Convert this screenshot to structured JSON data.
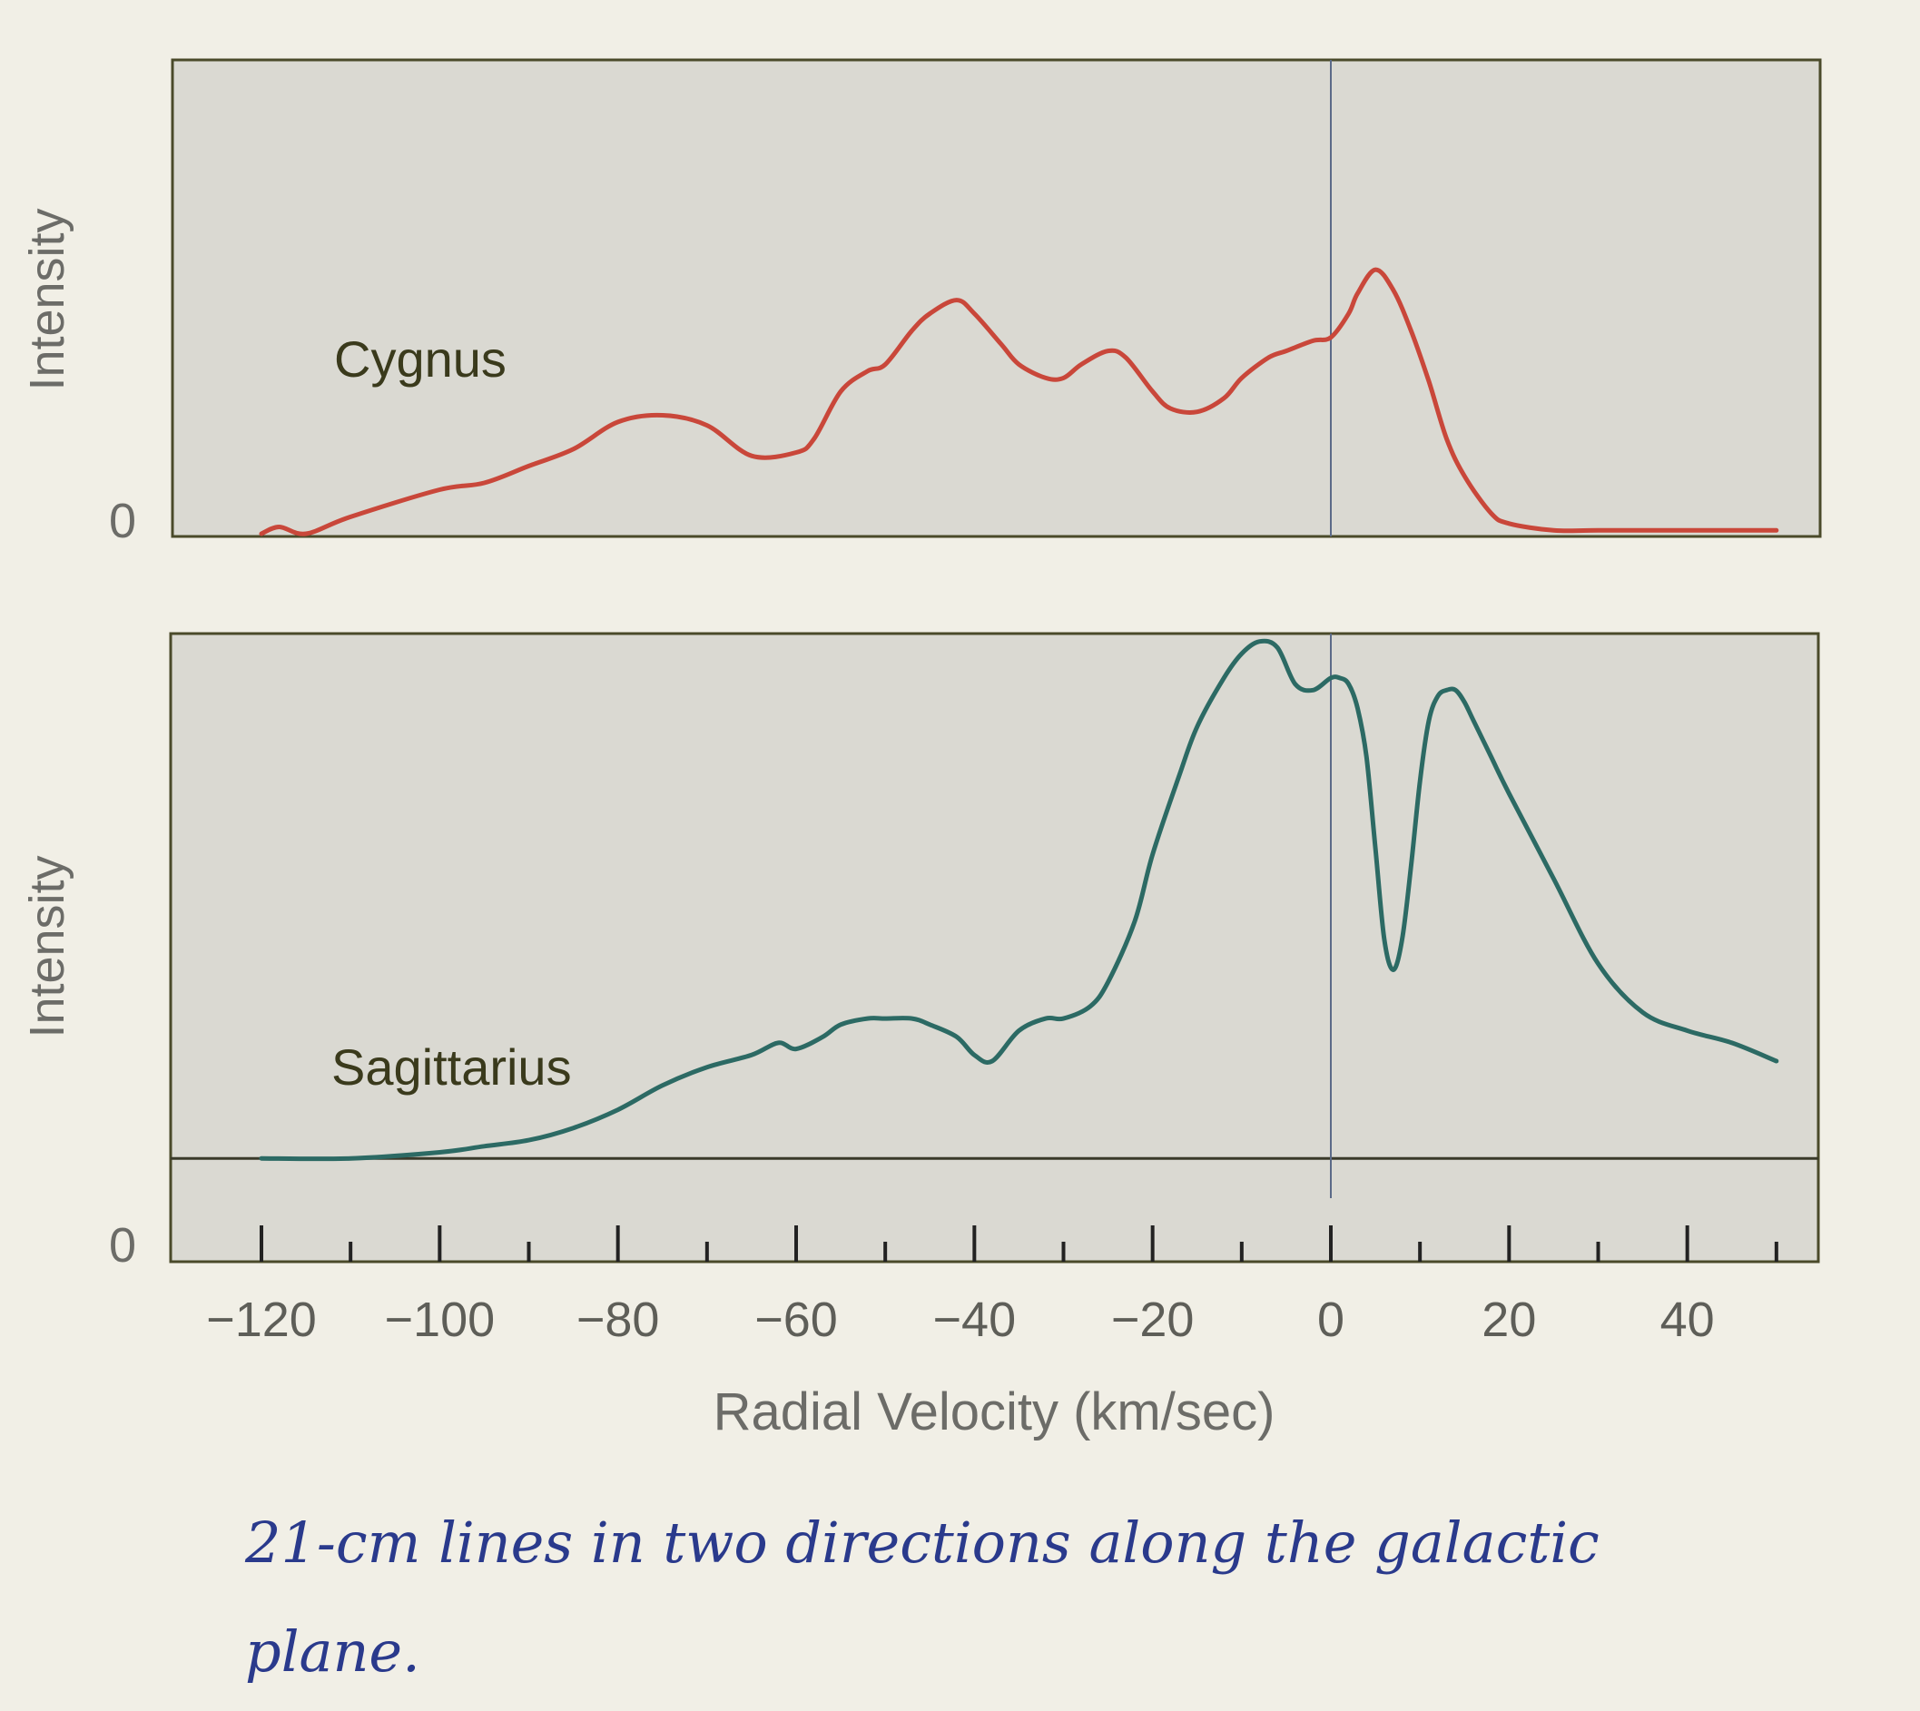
{
  "chart_data": [
    {
      "type": "line",
      "panel": "top",
      "series": [
        {
          "name": "Cygnus",
          "color": "#c9473a",
          "x": [
            -120,
            -118,
            -115,
            -110,
            -100,
            -95,
            -90,
            -85,
            -80,
            -75,
            -70,
            -65,
            -60,
            -58,
            -55,
            -52,
            -50,
            -47,
            -45,
            -42,
            -40,
            -37,
            -35,
            -32,
            -30,
            -28,
            -25,
            -23,
            -20,
            -18,
            -15,
            -12,
            -10,
            -7,
            -5,
            -2,
            0,
            2,
            3,
            5,
            7,
            9,
            11,
            13,
            15,
            18,
            20,
            25,
            30,
            40,
            50
          ],
          "values": [
            0.0,
            0.02,
            0.0,
            0.05,
            0.13,
            0.15,
            0.2,
            0.25,
            0.33,
            0.35,
            0.32,
            0.23,
            0.24,
            0.28,
            0.42,
            0.48,
            0.5,
            0.6,
            0.65,
            0.69,
            0.65,
            0.56,
            0.5,
            0.46,
            0.46,
            0.5,
            0.54,
            0.52,
            0.42,
            0.37,
            0.36,
            0.4,
            0.46,
            0.52,
            0.54,
            0.57,
            0.58,
            0.65,
            0.71,
            0.78,
            0.72,
            0.6,
            0.45,
            0.28,
            0.17,
            0.06,
            0.03,
            0.01,
            0.01,
            0.01,
            0.01
          ]
        }
      ],
      "xlim": [
        -128,
        55
      ],
      "ylim": [
        0,
        1
      ],
      "ylabel": "Intensity",
      "ytick_labels": [
        "0"
      ],
      "zero_line_x": 0
    },
    {
      "type": "line",
      "panel": "bottom",
      "series": [
        {
          "name": "Sagittarius",
          "color": "#2c6a64",
          "x": [
            -120,
            -110,
            -100,
            -95,
            -90,
            -85,
            -80,
            -75,
            -70,
            -65,
            -62,
            -60,
            -57,
            -55,
            -52,
            -50,
            -47,
            -45,
            -42,
            -40,
            -38,
            -35,
            -32,
            -30,
            -27,
            -25,
            -22,
            -20,
            -17,
            -15,
            -12,
            -10,
            -8,
            -6,
            -4,
            -2,
            0,
            1,
            2,
            3,
            4,
            5,
            6,
            7,
            8,
            9,
            10,
            11,
            12,
            13,
            14,
            15,
            16,
            18,
            20,
            25,
            30,
            35,
            40,
            45,
            50
          ],
          "values": [
            0.14,
            0.14,
            0.15,
            0.16,
            0.17,
            0.19,
            0.22,
            0.26,
            0.29,
            0.31,
            0.33,
            0.32,
            0.34,
            0.36,
            0.37,
            0.37,
            0.37,
            0.36,
            0.34,
            0.31,
            0.3,
            0.35,
            0.37,
            0.37,
            0.39,
            0.43,
            0.53,
            0.64,
            0.77,
            0.85,
            0.93,
            0.97,
            0.99,
            0.98,
            0.92,
            0.91,
            0.93,
            0.93,
            0.92,
            0.88,
            0.8,
            0.65,
            0.5,
            0.45,
            0.5,
            0.62,
            0.76,
            0.86,
            0.9,
            0.91,
            0.91,
            0.89,
            0.86,
            0.8,
            0.74,
            0.6,
            0.46,
            0.38,
            0.35,
            0.33,
            0.3
          ]
        }
      ],
      "xlim": [
        -128,
        55
      ],
      "ylim": [
        0,
        1
      ],
      "baseline": 0.14,
      "ylabel": "Intensity",
      "ytick_labels": [
        "0"
      ],
      "xlabel": "Radial Velocity (km/sec)",
      "xticks_major": [
        -120,
        -100,
        -80,
        -60,
        -40,
        -20,
        0,
        20,
        40
      ],
      "xtick_labels": [
        "−120",
        "−100",
        "−80",
        "−60",
        "−40",
        "−20",
        "0",
        "20",
        "40"
      ],
      "xticks_minor": [
        -110,
        -90,
        -70,
        -50,
        -30,
        -10,
        10,
        30,
        50
      ],
      "zero_line_x": 0
    }
  ],
  "caption": {
    "line1": "21-cm lines in two directions along the galactic",
    "line2": "plane."
  }
}
